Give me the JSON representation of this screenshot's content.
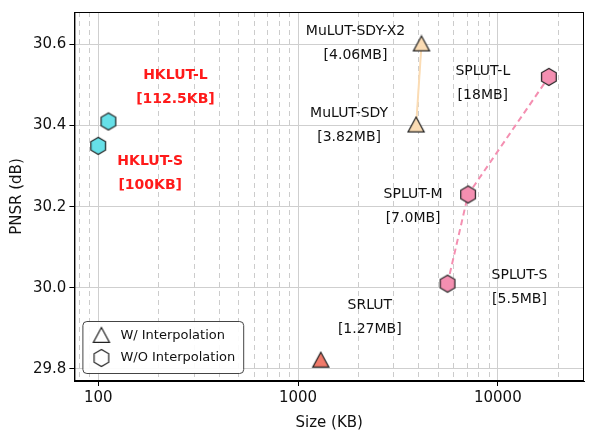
{
  "chart_data": {
    "type": "scatter",
    "x_label": "Size (KB)",
    "y_label": "PNSR (dB)",
    "log": "x",
    "grid": true,
    "legend": "lower left",
    "xlim": [
      76,
      27000
    ],
    "ylim": [
      29.77,
      30.68
    ],
    "xticks": [
      100,
      1000,
      10000
    ],
    "yticks": [
      29.8,
      {
        "value": 30,
        "label": "30.0"
      },
      30.2,
      30.4,
      30.6
    ],
    "legend_entries": [
      {
        "name": "W/ Interpolation",
        "marker": "triangle"
      },
      {
        "name": "W/O Interpolation",
        "marker": "hexagon"
      }
    ],
    "series": [
      {
        "color": "#66e0e8",
        "marker": "hexagon",
        "line_style": "none",
        "x": [
          100,
          112.5
        ],
        "values": [
          30.35,
          30.41
        ],
        "labels": [
          [
            "HKLUT-S",
            "[100KB]"
          ],
          [
            "HKLUT-L",
            "[112.5KB]"
          ]
        ]
      },
      {
        "color": "#fbdcb4",
        "marker": "triangle",
        "line_style": "solid",
        "x": [
          3900,
          4150
        ],
        "values": [
          30.4,
          30.6
        ],
        "labels": [
          [
            "MuLUT-SDY",
            "[3.82MB]"
          ],
          [
            "MuLUT-SDY-X2",
            "[4.06MB]"
          ]
        ]
      },
      {
        "color": "#f07a6a",
        "marker": "triangle",
        "line_style": "none",
        "x": [
          1300
        ],
        "values": [
          29.82
        ],
        "labels": [
          [
            "SRLUT",
            "[1.27MB]"
          ]
        ]
      },
      {
        "color": "#f48fb1",
        "marker": "hexagon",
        "line_style": "dashed",
        "x": [
          5600,
          7100,
          18000
        ],
        "values": [
          30.01,
          30.23,
          30.52
        ],
        "labels": [
          [
            "SPLUT-S",
            "[5.5MB]"
          ],
          [
            "SPLUT-M",
            "[7.0MB]"
          ],
          [
            "SPLUT-L",
            "[18MB]"
          ]
        ]
      }
    ]
  }
}
